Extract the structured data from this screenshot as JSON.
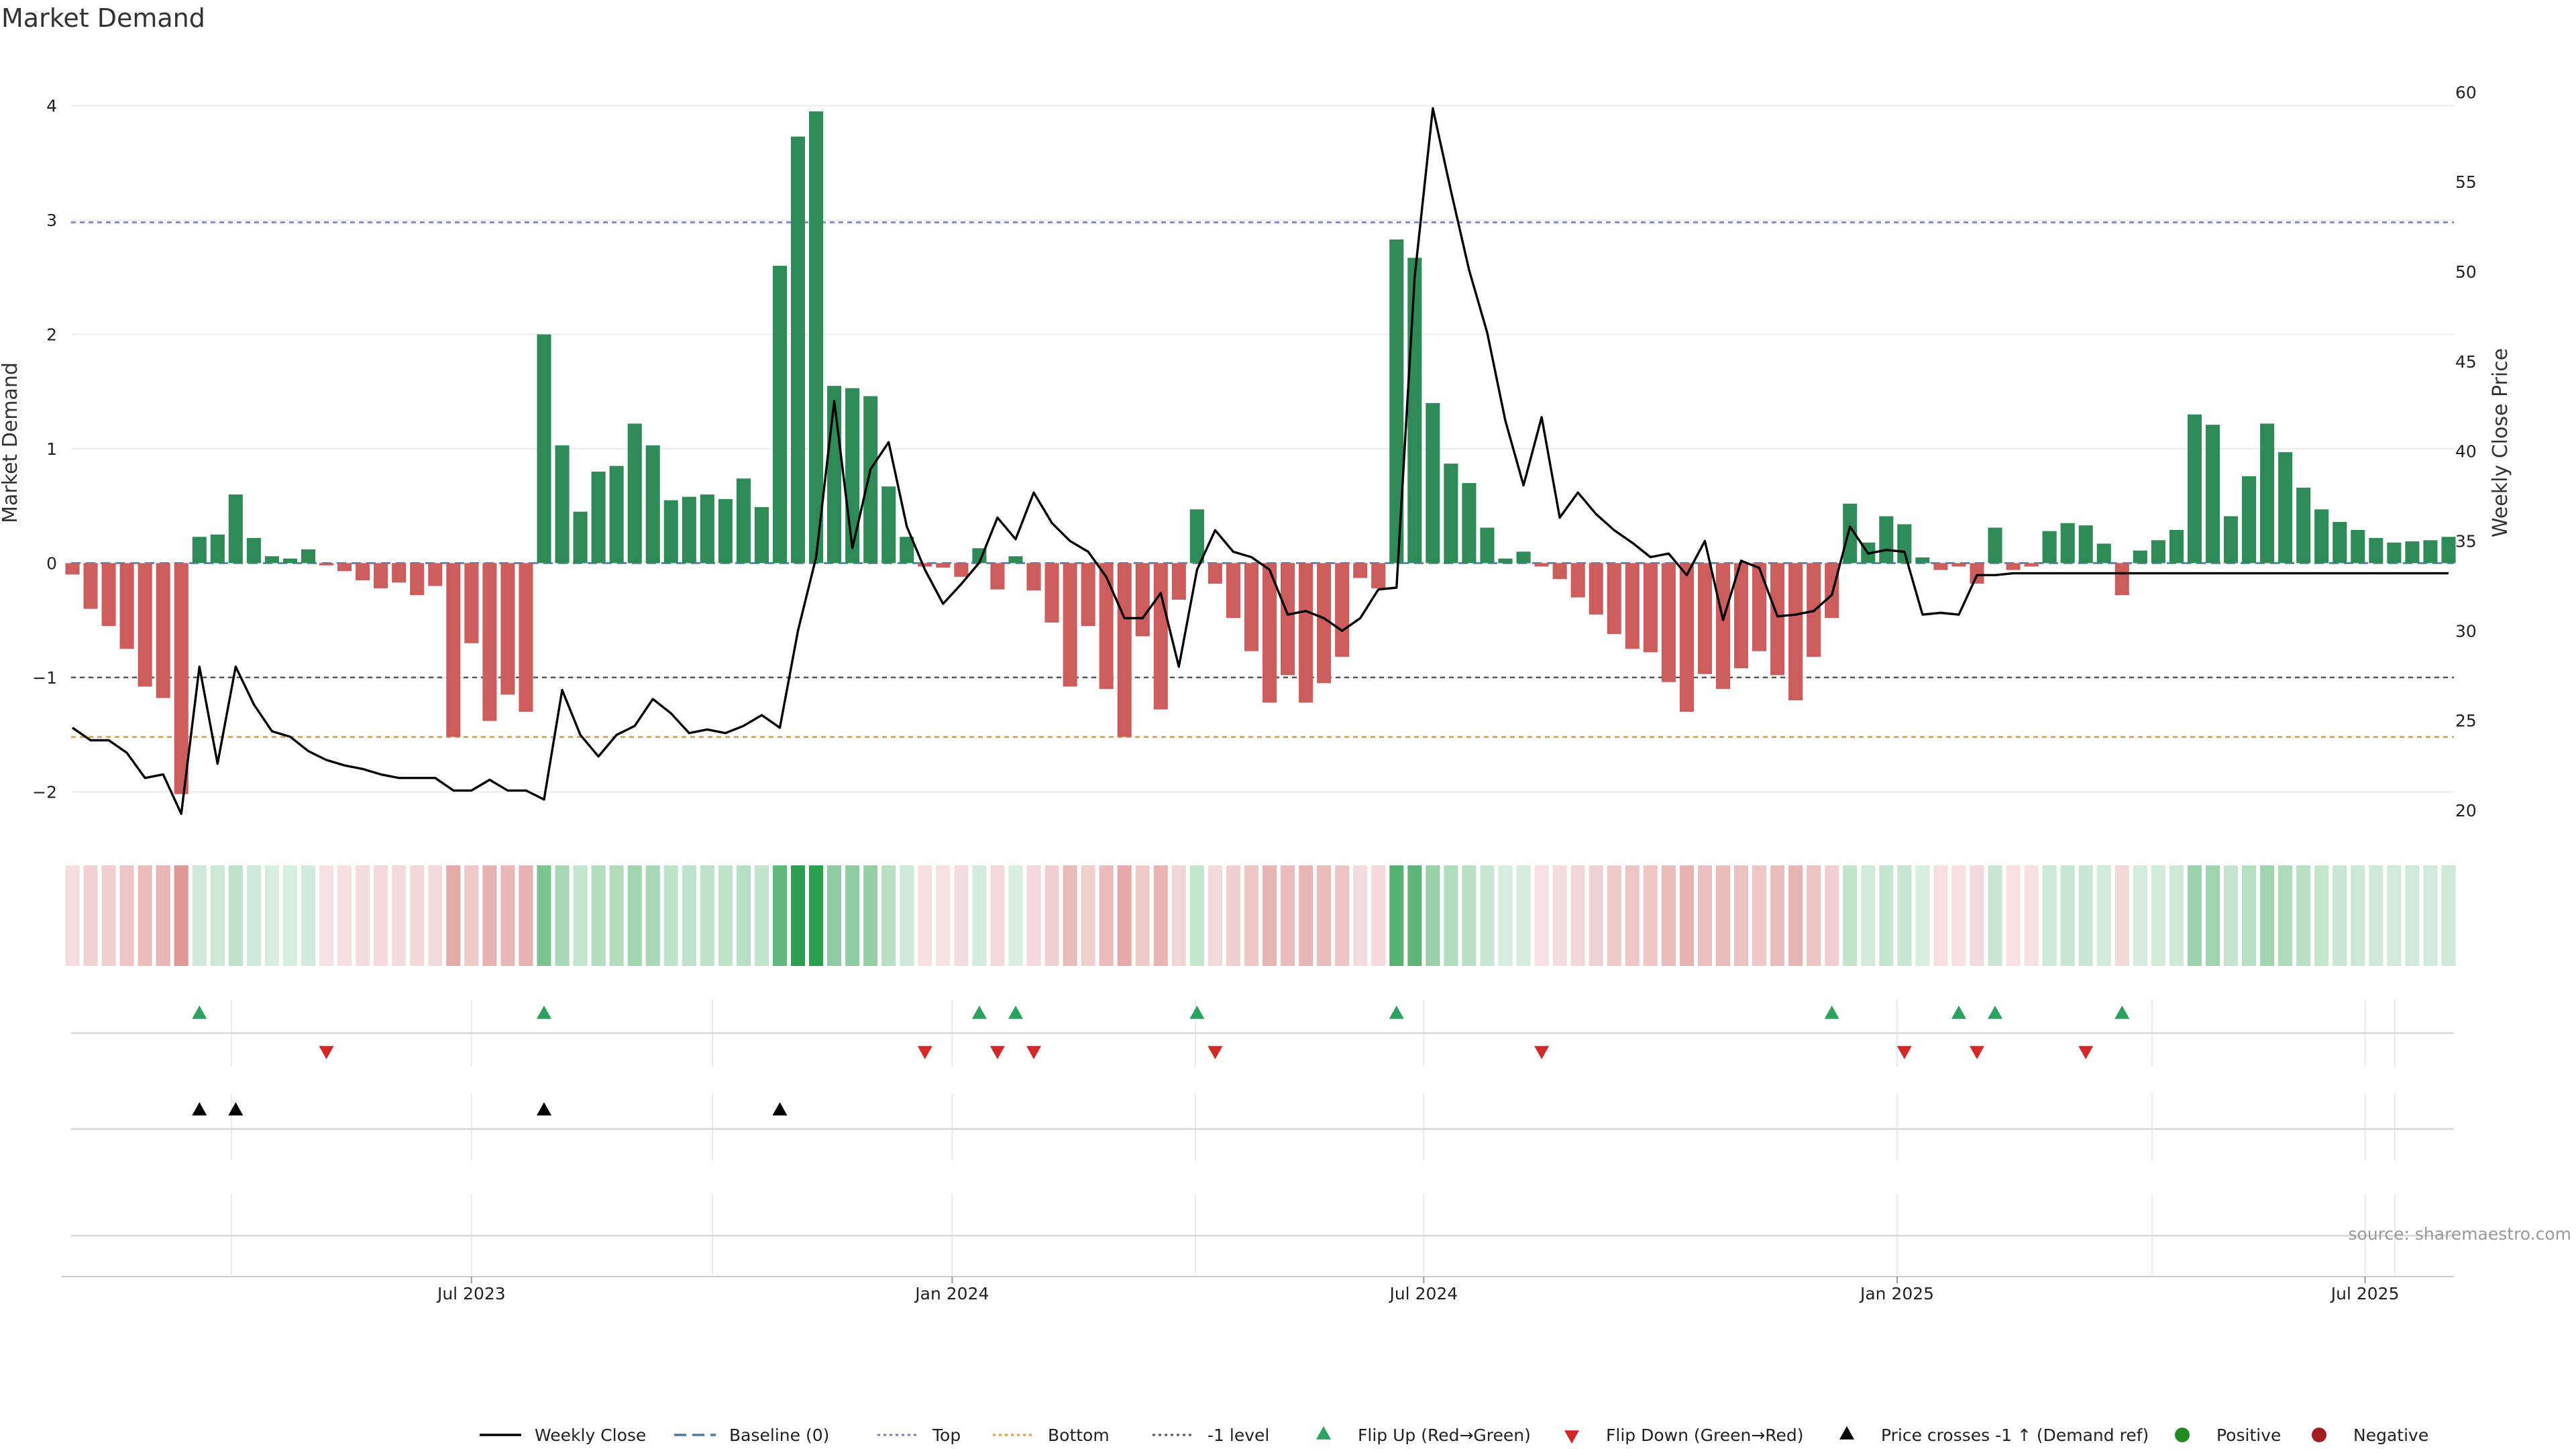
{
  "chart_data": {
    "type": "bar",
    "title": "Market Demand",
    "y_label": "Market Demand",
    "y2_label": "Weekly Close Price",
    "y_ticks": [
      "−2",
      "−1",
      "0",
      "1",
      "2",
      "3",
      "4"
    ],
    "y2_ticks": [
      "20",
      "25",
      "30",
      "35",
      "40",
      "45",
      "50",
      "55",
      "60"
    ],
    "ylim": [
      -2.35,
      4.15
    ],
    "y2lim": [
      18.8,
      60.2
    ],
    "x_ticks": [
      {
        "label": "Jul 2023",
        "index": 22
      },
      {
        "label": "Jan 2024",
        "index": 48.5
      },
      {
        "label": "Jul 2024",
        "index": 74.5
      },
      {
        "label": "Jan 2025",
        "index": 100.6
      },
      {
        "label": "Jul 2025",
        "index": 126.4
      }
    ],
    "demand": [
      -0.1,
      -0.4,
      -0.55,
      -0.75,
      -1.08,
      -1.18,
      -2.02,
      0.23,
      0.25,
      0.6,
      0.22,
      0.06,
      0.04,
      0.12,
      -0.02,
      -0.07,
      -0.15,
      -0.22,
      -0.17,
      -0.28,
      -0.2,
      -1.52,
      -0.7,
      -1.38,
      -1.15,
      -1.3,
      2.0,
      1.03,
      0.45,
      0.8,
      0.85,
      1.22,
      1.03,
      0.55,
      0.58,
      0.6,
      0.56,
      0.74,
      0.49,
      2.6,
      3.73,
      3.95,
      1.55,
      1.53,
      1.46,
      0.67,
      0.23,
      -0.03,
      -0.04,
      -0.12,
      0.13,
      -0.23,
      0.06,
      -0.24,
      -0.52,
      -1.08,
      -0.55,
      -1.1,
      -1.52,
      -0.64,
      -1.28,
      -0.32,
      0.47,
      -0.18,
      -0.48,
      -0.77,
      -1.22,
      -0.98,
      -1.22,
      -1.05,
      -0.82,
      -0.13,
      -0.22,
      2.83,
      2.67,
      1.4,
      0.87,
      0.7,
      0.31,
      0.04,
      0.1,
      -0.03,
      -0.14,
      -0.3,
      -0.45,
      -0.62,
      -0.75,
      -0.78,
      -1.04,
      -1.3,
      -0.97,
      -1.1,
      -0.92,
      -0.77,
      -0.98,
      -1.2,
      -0.82,
      -0.48,
      0.52,
      0.18,
      0.41,
      0.34,
      0.05,
      -0.06,
      -0.03,
      -0.18,
      0.31,
      -0.06,
      -0.03,
      0.28,
      0.35,
      0.33,
      0.17,
      -0.28,
      0.11,
      0.2,
      0.29,
      1.3,
      1.21,
      0.41,
      0.76,
      1.22,
      0.97,
      0.66,
      0.47,
      0.36,
      0.29,
      0.22,
      0.18,
      0.19,
      0.2,
      0.23
    ],
    "weekly_close": [
      24.6,
      23.9,
      23.9,
      23.2,
      21.8,
      22.0,
      19.8,
      28.0,
      22.6,
      28.0,
      25.9,
      24.4,
      24.1,
      23.3,
      22.8,
      22.5,
      22.3,
      22.0,
      21.8,
      21.8,
      21.8,
      21.1,
      21.1,
      21.7,
      21.1,
      21.1,
      20.6,
      26.7,
      24.2,
      23.0,
      24.2,
      24.7,
      26.2,
      25.4,
      24.3,
      24.5,
      24.3,
      24.7,
      25.3,
      24.6,
      30.0,
      34.1,
      42.8,
      34.6,
      39.0,
      40.5,
      35.8,
      33.4,
      31.5,
      32.6,
      33.8,
      36.3,
      35.1,
      37.7,
      36.0,
      35.0,
      34.4,
      33.0,
      30.7,
      30.7,
      32.1,
      28.0,
      33.4,
      35.6,
      34.4,
      34.1,
      33.4,
      30.9,
      31.1,
      30.7,
      30.0,
      30.7,
      32.3,
      32.4,
      49.7,
      59.1,
      54.5,
      50.1,
      46.6,
      41.7,
      38.1,
      41.9,
      36.3,
      37.7,
      36.5,
      35.6,
      34.9,
      34.1,
      34.3,
      33.1,
      35.0,
      30.6,
      33.9,
      33.5,
      30.8,
      30.9,
      31.1,
      32.0,
      35.8,
      34.3,
      34.5,
      34.4,
      30.9,
      31.0,
      30.9,
      33.1,
      33.1,
      33.2,
      33.2,
      33.2,
      33.2,
      33.2,
      33.2,
      33.2,
      33.2,
      33.2,
      33.2,
      33.2,
      33.2,
      33.2,
      33.2,
      33.2,
      33.2,
      33.2,
      33.2,
      33.2,
      33.2,
      33.2,
      33.2,
      33.2,
      33.2,
      33.2
    ],
    "reference_lines": [
      {
        "name": "Top",
        "value": 2.98,
        "color": "#7b7fbf"
      },
      {
        "name": "-1 level",
        "value": -1.0,
        "color": "#555555"
      },
      {
        "name": "Bottom",
        "value": -1.52,
        "color": "#e39b3b"
      },
      {
        "name": "Baseline (0)",
        "value": 0,
        "color": "#4e79a7"
      }
    ],
    "flip_up_idx": [
      7,
      26,
      50,
      52,
      62,
      73,
      97,
      104,
      106,
      113
    ],
    "flip_down_idx": [
      14,
      47,
      51,
      53,
      63,
      81,
      101,
      105,
      111
    ],
    "price_cross_idx": [
      7,
      9,
      26,
      39
    ],
    "colors": {
      "positive": "#2e8b57",
      "negative": "#cd5c5c",
      "flip_up": "#2ca25f",
      "flip_down": "#d62728",
      "price_line": "#000000",
      "positive_dot": "#228b22",
      "negative_dot": "#a11d21"
    },
    "legend": [
      {
        "label": "Weekly Close",
        "kind": "line",
        "color": "#000000"
      },
      {
        "label": "Baseline (0)",
        "kind": "dash",
        "color": "#4e79a7"
      },
      {
        "label": "Top",
        "kind": "dot",
        "color": "#7b7fbf"
      },
      {
        "label": "Bottom",
        "kind": "dot",
        "color": "#e39b3b"
      },
      {
        "label": "-1 level",
        "kind": "dot",
        "color": "#555555"
      },
      {
        "label": "Flip Up (Red→Green)",
        "kind": "tri-up",
        "color": "#2ca25f"
      },
      {
        "label": "Flip Down (Green→Red)",
        "kind": "tri-down",
        "color": "#d62728"
      },
      {
        "label": "Price crosses -1 ↑ (Demand ref)",
        "kind": "tri-up",
        "color": "#000000"
      },
      {
        "label": "Positive",
        "kind": "circle",
        "color": "#228b22"
      },
      {
        "label": "Negative",
        "kind": "circle",
        "color": "#a11d21"
      }
    ],
    "source": "source: sharemaestro.com"
  }
}
